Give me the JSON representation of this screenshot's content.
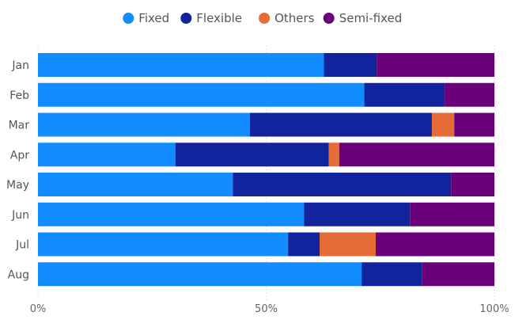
{
  "colors": {
    "Fixed": "#118dff",
    "Flexible": "#12239e",
    "Others": "#e66c37",
    "Semi-fixed": "#6b007b"
  },
  "chart_data": {
    "type": "bar",
    "orientation": "horizontal",
    "stacked": "100%",
    "legend_position": "top",
    "grid": "vertical-dotted",
    "xlim": [
      0,
      100
    ],
    "x_ticks": [
      "0%",
      "50%",
      "100%"
    ],
    "categories": [
      "Jan",
      "Feb",
      "Mar",
      "Apr",
      "May",
      "Jun",
      "Jul",
      "Aug"
    ],
    "series": [
      {
        "name": "Fixed",
        "values": [
          62.6,
          71.5,
          46.4,
          30.1,
          42.7,
          58.3,
          54.8,
          70.9
        ]
      },
      {
        "name": "Flexible",
        "values": [
          11.6,
          17.6,
          39.9,
          33.6,
          47.8,
          23.2,
          6.9,
          13.3
        ]
      },
      {
        "name": "Others",
        "values": [
          0,
          0,
          4.9,
          2.3,
          0,
          0,
          12.3,
          0
        ]
      },
      {
        "name": "Semi-fixed",
        "values": [
          25.8,
          10.9,
          8.8,
          34.0,
          9.5,
          18.5,
          26.0,
          15.8
        ]
      }
    ]
  }
}
